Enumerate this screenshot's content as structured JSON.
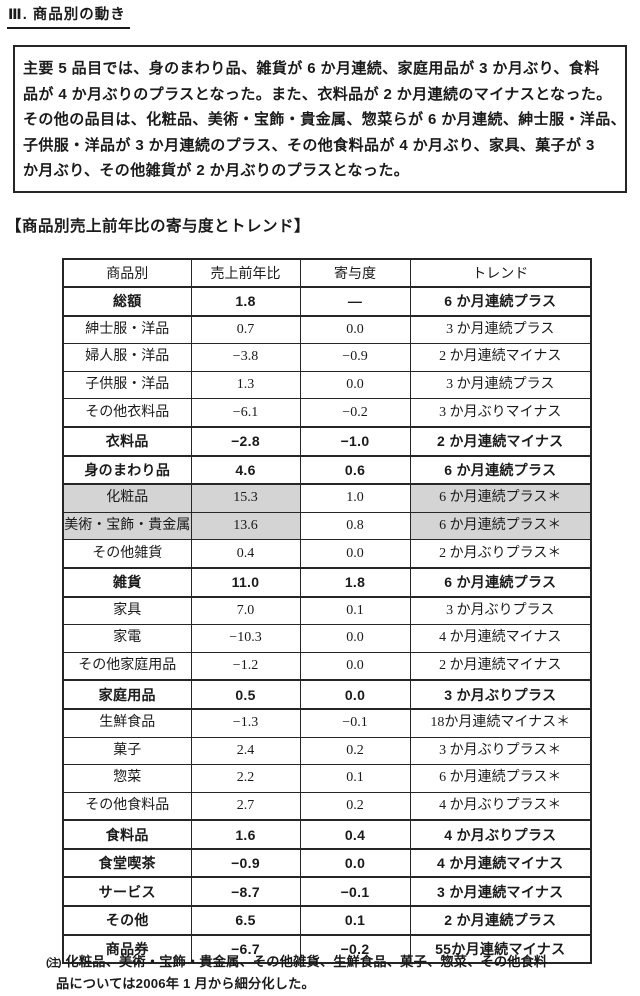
{
  "page": {
    "title": "Ⅲ. 商品別の動き",
    "table_heading": "【商品別売上前年比の寄与度とトレンド】"
  },
  "summary_box": {
    "lines": [
      "主要 5 品目では、身のまわり品、雑貨が 6 か月連続、家庭用品が 3 か月ぶり、食料",
      "品が 4 か月ぶりのプラスとなった。また、衣料品が 2 か月連続のマイナスとなった。",
      "その他の品目は、化粧品、美術・宝飾・貴金属、惣菜らが 6 か月連続、紳士服・洋品、",
      "子供服・洋品が 3 か月連続のプラス、その他食料品が 4 か月ぶり、家具、菓子が 3",
      "か月ぶり、その他雑貨が 2 か月ぶりのプラスとなった。"
    ]
  },
  "table": {
    "headers": [
      "商品別",
      "売上前年比",
      "寄与度",
      "トレンド"
    ],
    "rows": [
      {
        "name": "総額",
        "sales": "1.8",
        "contrib": "―",
        "trend": "6 か月連続プラス",
        "bold": true,
        "shaded": false
      },
      {
        "name": "紳士服・洋品",
        "sales": "0.7",
        "contrib": "0.0",
        "trend": "3 か月連続プラス",
        "bold": false,
        "shaded": false
      },
      {
        "name": "婦人服・洋品",
        "sales": "−3.8",
        "contrib": "−0.9",
        "trend": "2 か月連続マイナス",
        "bold": false,
        "shaded": false
      },
      {
        "name": "子供服・洋品",
        "sales": "1.3",
        "contrib": "0.0",
        "trend": "3 か月連続プラス",
        "bold": false,
        "shaded": false
      },
      {
        "name": "その他衣料品",
        "sales": "−6.1",
        "contrib": "−0.2",
        "trend": "3 か月ぶりマイナス",
        "bold": false,
        "shaded": false
      },
      {
        "name": "衣料品",
        "sales": "−2.8",
        "contrib": "−1.0",
        "trend": "2 か月連続マイナス",
        "bold": true,
        "shaded": false
      },
      {
        "name": "身のまわり品",
        "sales": "4.6",
        "contrib": "0.6",
        "trend": "6 か月連続プラス",
        "bold": true,
        "shaded": false
      },
      {
        "name": "化粧品",
        "sales": "15.3",
        "contrib": "1.0",
        "trend": "6 か月連続プラス＊",
        "bold": false,
        "shaded": true
      },
      {
        "name": "美術・宝飾・貴金属",
        "sales": "13.6",
        "contrib": "0.8",
        "trend": "6 か月連続プラス＊",
        "bold": false,
        "shaded": true
      },
      {
        "name": "その他雑貨",
        "sales": "0.4",
        "contrib": "0.0",
        "trend": "2 か月ぶりプラス＊",
        "bold": false,
        "shaded": false
      },
      {
        "name": "雑貨",
        "sales": "11.0",
        "contrib": "1.8",
        "trend": "6 か月連続プラス",
        "bold": true,
        "shaded": false
      },
      {
        "name": "家具",
        "sales": "7.0",
        "contrib": "0.1",
        "trend": "3 か月ぶりプラス",
        "bold": false,
        "shaded": false
      },
      {
        "name": "家電",
        "sales": "−10.3",
        "contrib": "0.0",
        "trend": "4 か月連続マイナス",
        "bold": false,
        "shaded": false
      },
      {
        "name": "その他家庭用品",
        "sales": "−1.2",
        "contrib": "0.0",
        "trend": "2 か月連続マイナス",
        "bold": false,
        "shaded": false
      },
      {
        "name": "家庭用品",
        "sales": "0.5",
        "contrib": "0.0",
        "trend": "3 か月ぶりプラス",
        "bold": true,
        "shaded": false
      },
      {
        "name": "生鮮食品",
        "sales": "−1.3",
        "contrib": "−0.1",
        "trend": "18か月連続マイナス＊",
        "bold": false,
        "shaded": false
      },
      {
        "name": "菓子",
        "sales": "2.4",
        "contrib": "0.2",
        "trend": "3 か月ぶりプラス＊",
        "bold": false,
        "shaded": false
      },
      {
        "name": "惣菜",
        "sales": "2.2",
        "contrib": "0.1",
        "trend": "6 か月連続プラス＊",
        "bold": false,
        "shaded": false
      },
      {
        "name": "その他食料品",
        "sales": "2.7",
        "contrib": "0.2",
        "trend": "4 か月ぶりプラス＊",
        "bold": false,
        "shaded": false
      },
      {
        "name": "食料品",
        "sales": "1.6",
        "contrib": "0.4",
        "trend": "4 か月ぶりプラス",
        "bold": true,
        "shaded": false
      },
      {
        "name": "食堂喫茶",
        "sales": "−0.9",
        "contrib": "0.0",
        "trend": "4 か月連続マイナス",
        "bold": true,
        "shaded": false
      },
      {
        "name": "サービス",
        "sales": "−8.7",
        "contrib": "−0.1",
        "trend": "3 か月連続マイナス",
        "bold": true,
        "shaded": false
      },
      {
        "name": "その他",
        "sales": "6.5",
        "contrib": "0.1",
        "trend": "2 か月連続プラス",
        "bold": true,
        "shaded": false
      },
      {
        "name": "商品券",
        "sales": "−6.7",
        "contrib": "−0.2",
        "trend": "55か月連続マイナス",
        "bold": true,
        "shaded": false
      }
    ]
  },
  "footnote": {
    "mark": "(注)",
    "lines": [
      "化粧品、美術・宝飾・貴金属、その他雑貨、生鮮食品、菓子、惣菜、その他食料",
      "品については2006年 1 月から細分化した。"
    ]
  },
  "colors": {
    "shaded_cell": "#d4d4d4",
    "border": "#262626",
    "text": "#1a1a1a"
  }
}
